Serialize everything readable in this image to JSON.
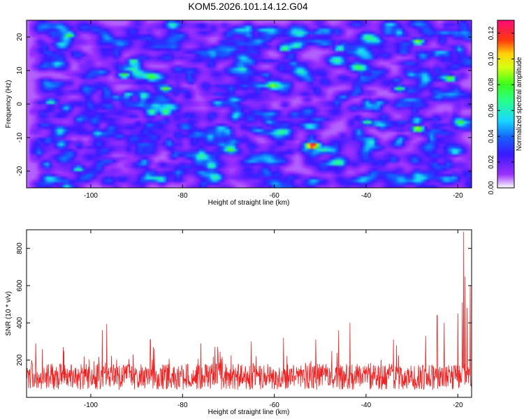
{
  "title": "KOM5.2026.101.14.12.G04",
  "chart_data": [
    {
      "type": "heatmap",
      "name": "spectrogram",
      "xlabel": "Height of straight line (km)",
      "ylabel": "Frequency (Hz)",
      "xlim": [
        -114,
        -17
      ],
      "ylim": [
        -25,
        25
      ],
      "xticks": [
        -100,
        -80,
        -60,
        -40,
        -20
      ],
      "yticks": [
        -20,
        -10,
        0,
        10,
        20
      ],
      "xtick_labels": [
        "-100",
        "-80",
        "-60",
        "-40",
        "-20"
      ],
      "ytick_labels": [
        "-20",
        "-10",
        "0",
        "10",
        "20"
      ],
      "colorbar": {
        "label": "Normalized spectral amplitude",
        "range": [
          0.0,
          0.13
        ],
        "ticks": [
          0.0,
          0.02,
          0.04,
          0.06,
          0.08,
          0.1,
          0.12
        ],
        "tick_labels": [
          "0.00",
          "0.02",
          "0.04",
          "0.06",
          "0.08",
          "0.10",
          "0.12"
        ],
        "colormap": "rainbow (white → violet → blue → cyan → green → yellow → red → magenta)"
      },
      "peak": {
        "x": -52,
        "y": -12,
        "value": 0.13
      },
      "hotspots": [
        {
          "x": -105,
          "y": 21,
          "value": 0.075
        },
        {
          "x": -91,
          "y": 13,
          "value": 0.07
        },
        {
          "x": -93,
          "y": 9,
          "value": 0.075
        },
        {
          "x": -84,
          "y": 5,
          "value": 0.08
        },
        {
          "x": -87,
          "y": -2,
          "value": 0.07
        },
        {
          "x": -84,
          "y": -2,
          "value": 0.075
        },
        {
          "x": -58,
          "y": 17,
          "value": 0.075
        },
        {
          "x": -46,
          "y": 17,
          "value": 0.065
        },
        {
          "x": -29,
          "y": 19,
          "value": 0.085
        },
        {
          "x": -29,
          "y": -7,
          "value": 0.095
        },
        {
          "x": -22,
          "y": 8,
          "value": 0.085
        },
        {
          "x": -33,
          "y": 5,
          "value": 0.07
        },
        {
          "x": -40,
          "y": -5,
          "value": 0.065
        },
        {
          "x": -109,
          "y": 1,
          "value": 0.06
        },
        {
          "x": -103,
          "y": -19,
          "value": 0.06
        }
      ]
    },
    {
      "type": "line",
      "name": "snr",
      "xlabel": "Height of straight line (km)",
      "ylabel": "SNR (10 * v/v)",
      "xlim": [
        -114,
        -17
      ],
      "ylim": [
        0,
        900
      ],
      "xticks": [
        -100,
        -80,
        -60,
        -40,
        -20
      ],
      "yticks": [
        200,
        400,
        600,
        800
      ],
      "xtick_labels": [
        "-100",
        "-80",
        "-60",
        "-40",
        "-20"
      ],
      "ytick_labels": [
        "200",
        "400",
        "600",
        "800"
      ],
      "color": "#ee2222",
      "baseline": 110,
      "noise_amplitude": 70,
      "spikes": [
        {
          "x": -112,
          "y": 290
        },
        {
          "x": -106,
          "y": 270
        },
        {
          "x": -96.5,
          "y": 395
        },
        {
          "x": -97.5,
          "y": 360
        },
        {
          "x": -87,
          "y": 310
        },
        {
          "x": -76,
          "y": 290
        },
        {
          "x": -65,
          "y": 300
        },
        {
          "x": -58,
          "y": 320
        },
        {
          "x": -51,
          "y": 310
        },
        {
          "x": -46,
          "y": 360
        },
        {
          "x": -43.5,
          "y": 400
        },
        {
          "x": -34,
          "y": 310
        },
        {
          "x": -27,
          "y": 330
        },
        {
          "x": -24.5,
          "y": 440
        },
        {
          "x": -23,
          "y": 400
        },
        {
          "x": -20,
          "y": 450
        },
        {
          "x": -19,
          "y": 510
        },
        {
          "x": -18.7,
          "y": 890
        },
        {
          "x": -18.4,
          "y": 650
        },
        {
          "x": -18.0,
          "y": 480
        },
        {
          "x": -17.3,
          "y": 600
        }
      ]
    }
  ]
}
